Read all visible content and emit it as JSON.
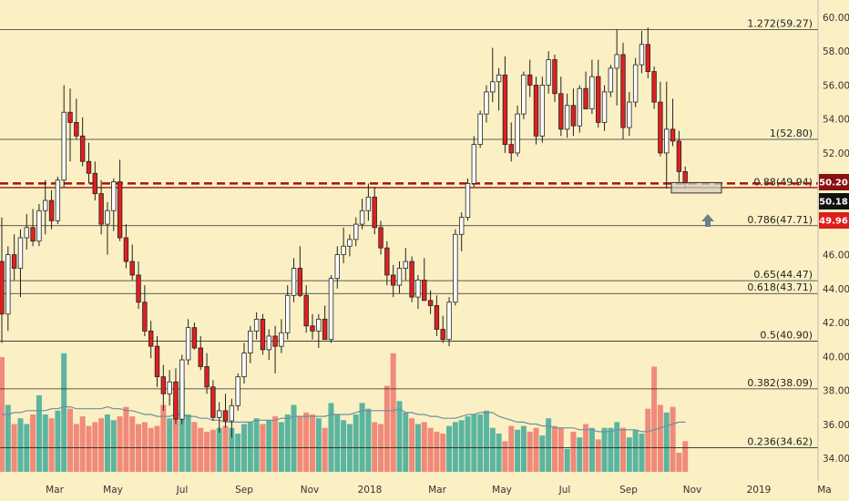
{
  "chart_data": {
    "type": "candlestick",
    "price_axis": {
      "ticks": [
        34,
        36,
        38,
        40,
        42,
        44,
        46,
        48,
        50,
        52,
        54,
        56,
        58,
        60
      ],
      "tick_labels": [
        "34.00",
        "36.00",
        "38.00",
        "40.00",
        "42.00",
        "44.00",
        "46.00",
        "48.00",
        "50.00",
        "52.00",
        "54.00",
        "56.00",
        "58.00",
        "60.00"
      ],
      "range": [
        33,
        61
      ]
    },
    "time_axis": {
      "labels": [
        "Mar",
        "May",
        "Jul",
        "Sep",
        "Nov",
        "2018",
        "Mar",
        "May",
        "Jul",
        "Sep",
        "Nov",
        "2019",
        "Ma"
      ]
    },
    "fib_levels": [
      {
        "label": "1.272(59.27)",
        "price": 59.27
      },
      {
        "label": "1(52.80)",
        "price": 52.8
      },
      {
        "label": "0.88(49.94)",
        "price": 49.94
      },
      {
        "label": "0.786(47.71)",
        "price": 47.71
      },
      {
        "label": "0.65(44.47)",
        "price": 44.47
      },
      {
        "label": "0.618(43.71)",
        "price": 43.71
      },
      {
        "label": "0.5(40.90)",
        "price": 40.9
      },
      {
        "label": "0.382(38.09)",
        "price": 38.09
      },
      {
        "label": "0.236(34.62)",
        "price": 34.62
      }
    ],
    "price_badges": [
      {
        "label": "50.20",
        "price": 50.2,
        "color": "#8b1010"
      },
      {
        "label": "50.18",
        "price": 50.18,
        "color": "#111111"
      },
      {
        "label": "49.96",
        "price": 49.96,
        "color": "#e01b1b"
      }
    ],
    "support_line": {
      "price": 50.2,
      "style": "dashed",
      "color": "#a01515"
    },
    "solid_line": {
      "price": 49.96,
      "color": "#a01515"
    },
    "candles": [
      [
        45.6,
        48.2,
        40.8,
        42.5
      ],
      [
        42.5,
        46.5,
        41.5,
        46.0
      ],
      [
        46.0,
        47.2,
        44.5,
        45.2
      ],
      [
        45.2,
        47.5,
        43.5,
        47.0
      ],
      [
        47.0,
        48.4,
        46.3,
        47.6
      ],
      [
        47.6,
        48.7,
        46.5,
        46.8
      ],
      [
        46.8,
        49.0,
        46.5,
        48.6
      ],
      [
        48.6,
        50.4,
        47.2,
        49.2
      ],
      [
        49.2,
        49.8,
        47.5,
        48.0
      ],
      [
        48.0,
        50.6,
        47.8,
        50.4
      ],
      [
        50.4,
        56.0,
        50.0,
        54.4
      ],
      [
        54.4,
        55.8,
        51.5,
        53.8
      ],
      [
        53.8,
        55.2,
        52.8,
        53.0
      ],
      [
        53.0,
        54.1,
        51.2,
        51.5
      ],
      [
        51.5,
        52.6,
        50.2,
        50.8
      ],
      [
        50.8,
        51.5,
        49.2,
        49.6
      ],
      [
        49.6,
        50.4,
        47.2,
        47.8
      ],
      [
        47.8,
        49.1,
        46.0,
        48.6
      ],
      [
        48.6,
        50.5,
        47.4,
        50.3
      ],
      [
        50.3,
        51.6,
        46.8,
        47.0
      ],
      [
        47.0,
        47.8,
        45.2,
        45.6
      ],
      [
        45.6,
        46.6,
        44.5,
        44.8
      ],
      [
        44.8,
        45.6,
        42.8,
        43.2
      ],
      [
        43.2,
        44.2,
        41.2,
        41.5
      ],
      [
        41.5,
        42.1,
        39.9,
        40.6
      ],
      [
        40.6,
        41.2,
        38.2,
        38.8
      ],
      [
        38.8,
        39.5,
        36.8,
        37.8
      ],
      [
        37.8,
        39.2,
        37.1,
        38.5
      ],
      [
        38.5,
        39.3,
        36.0,
        36.3
      ],
      [
        36.3,
        40.1,
        36.0,
        39.8
      ],
      [
        39.8,
        42.2,
        39.5,
        41.7
      ],
      [
        41.7,
        42.0,
        40.4,
        40.5
      ],
      [
        40.5,
        41.2,
        39.2,
        39.4
      ],
      [
        39.4,
        40.2,
        37.8,
        38.2
      ],
      [
        38.2,
        38.6,
        36.2,
        36.4
      ],
      [
        36.4,
        37.3,
        35.5,
        36.8
      ],
      [
        36.8,
        37.8,
        35.8,
        36.2
      ],
      [
        36.2,
        37.5,
        35.2,
        37.1
      ],
      [
        37.1,
        39.0,
        36.8,
        38.8
      ],
      [
        38.8,
        40.8,
        38.4,
        40.2
      ],
      [
        40.2,
        41.8,
        39.6,
        41.5
      ],
      [
        41.5,
        42.6,
        41.0,
        42.2
      ],
      [
        42.2,
        42.5,
        40.1,
        40.4
      ],
      [
        40.4,
        41.6,
        39.8,
        41.2
      ],
      [
        41.2,
        41.8,
        39.0,
        40.6
      ],
      [
        40.6,
        42.2,
        40.2,
        41.4
      ],
      [
        41.4,
        44.2,
        41.0,
        43.6
      ],
      [
        43.6,
        45.8,
        43.2,
        45.2
      ],
      [
        45.2,
        46.5,
        43.5,
        43.6
      ],
      [
        43.6,
        44.2,
        41.4,
        41.8
      ],
      [
        41.8,
        42.5,
        41.0,
        41.5
      ],
      [
        41.5,
        42.5,
        40.5,
        42.2
      ],
      [
        42.2,
        43.0,
        41.2,
        41.0
      ],
      [
        41.0,
        44.8,
        40.8,
        44.6
      ],
      [
        44.6,
        46.5,
        44.0,
        46.0
      ],
      [
        46.0,
        47.6,
        45.5,
        46.5
      ],
      [
        46.5,
        47.2,
        45.9,
        46.9
      ],
      [
        46.9,
        48.2,
        46.5,
        47.8
      ],
      [
        47.8,
        49.3,
        47.5,
        48.6
      ],
      [
        48.6,
        50.2,
        48.0,
        49.4
      ],
      [
        49.4,
        50.0,
        47.2,
        47.6
      ],
      [
        47.6,
        48.0,
        46.0,
        46.4
      ],
      [
        46.4,
        46.8,
        44.2,
        44.8
      ],
      [
        44.8,
        45.4,
        43.5,
        44.2
      ],
      [
        44.2,
        45.6,
        43.7,
        45.2
      ],
      [
        45.2,
        46.4,
        44.5,
        45.6
      ],
      [
        45.6,
        45.9,
        43.2,
        43.5
      ],
      [
        43.5,
        44.8,
        42.8,
        44.5
      ],
      [
        44.5,
        45.8,
        43.5,
        43.3
      ],
      [
        43.3,
        43.9,
        42.5,
        43.0
      ],
      [
        43.0,
        43.6,
        41.2,
        41.6
      ],
      [
        41.6,
        42.4,
        40.8,
        41.0
      ],
      [
        41.0,
        43.5,
        40.6,
        43.2
      ],
      [
        43.2,
        47.5,
        43.0,
        47.2
      ],
      [
        47.2,
        48.5,
        46.2,
        48.2
      ],
      [
        48.2,
        50.5,
        48.0,
        50.2
      ],
      [
        50.2,
        53.0,
        50.0,
        52.5
      ],
      [
        52.5,
        54.5,
        52.3,
        54.3
      ],
      [
        54.3,
        56.0,
        53.8,
        55.6
      ],
      [
        55.6,
        58.2,
        55.0,
        56.2
      ],
      [
        56.2,
        57.0,
        54.5,
        56.6
      ],
      [
        56.6,
        57.7,
        52.0,
        52.5
      ],
      [
        52.5,
        53.8,
        51.5,
        52.0
      ],
      [
        52.0,
        54.8,
        51.8,
        54.3
      ],
      [
        54.3,
        56.8,
        54.0,
        56.6
      ],
      [
        56.6,
        57.5,
        55.3,
        56.0
      ],
      [
        56.0,
        56.5,
        52.5,
        53.0
      ],
      [
        53.0,
        56.5,
        52.6,
        56.0
      ],
      [
        56.0,
        58.0,
        55.5,
        57.5
      ],
      [
        57.5,
        57.8,
        55.0,
        55.5
      ],
      [
        55.5,
        56.5,
        53.0,
        53.4
      ],
      [
        53.4,
        55.5,
        52.9,
        54.8
      ],
      [
        54.8,
        55.8,
        53.0,
        53.6
      ],
      [
        53.6,
        56.0,
        53.2,
        55.8
      ],
      [
        55.8,
        56.8,
        54.6,
        54.6
      ],
      [
        54.6,
        57.5,
        54.3,
        56.5
      ],
      [
        56.5,
        57.5,
        53.5,
        53.8
      ],
      [
        53.8,
        56.0,
        53.3,
        55.6
      ],
      [
        55.6,
        57.2,
        55.3,
        57.0
      ],
      [
        57.0,
        59.3,
        54.8,
        57.8
      ],
      [
        57.8,
        58.5,
        52.8,
        53.5
      ],
      [
        53.5,
        55.6,
        53.0,
        55.0
      ],
      [
        55.0,
        57.6,
        54.7,
        57.2
      ],
      [
        57.2,
        59.2,
        56.7,
        58.4
      ],
      [
        58.4,
        59.4,
        56.4,
        56.8
      ],
      [
        56.8,
        57.1,
        54.6,
        55.0
      ],
      [
        55.0,
        56.2,
        51.8,
        52.0
      ],
      [
        52.0,
        56.2,
        49.9,
        53.4
      ],
      [
        53.4,
        55.2,
        52.4,
        52.7
      ],
      [
        52.7,
        53.3,
        50.3,
        50.9
      ],
      [
        50.9,
        51.2,
        49.9,
        50.2
      ]
    ],
    "volume": [
      6.0,
      3.5,
      2.5,
      2.8,
      2.5,
      3.0,
      4.0,
      3.0,
      2.8,
      3.2,
      6.2,
      3.3,
      2.5,
      2.9,
      2.4,
      2.6,
      2.8,
      3.0,
      2.7,
      2.9,
      3.4,
      2.9,
      2.5,
      2.6,
      2.3,
      2.4,
      3.5,
      2.8,
      3.8,
      4.8,
      3.0,
      2.6,
      2.3,
      2.1,
      2.2,
      2.3,
      2.4,
      2.3,
      2.0,
      2.5,
      2.6,
      2.8,
      2.5,
      2.7,
      2.9,
      2.6,
      3.0,
      3.5,
      2.9,
      3.1,
      3.0,
      2.8,
      2.3,
      3.6,
      3.0,
      2.7,
      2.5,
      3.0,
      3.6,
      3.3,
      2.6,
      2.5,
      4.5,
      6.2,
      3.7,
      3.1,
      2.8,
      2.5,
      2.6,
      2.3,
      2.1,
      2.0,
      2.4,
      2.6,
      2.7,
      2.9,
      3.0,
      3.0,
      3.2,
      2.3,
      2.0,
      1.6,
      2.4,
      2.2,
      2.4,
      2.1,
      2.3,
      1.9,
      2.8,
      2.4,
      2.3,
      1.2,
      2.1,
      1.8,
      2.5,
      2.3,
      1.7,
      2.3,
      2.3,
      2.6,
      2.3,
      1.8,
      2.2,
      2.0,
      3.3,
      5.5,
      3.5,
      3.1,
      3.4,
      1.0,
      1.6
    ],
    "volume_ma": [
      3.0,
      3.0,
      3.1,
      3.1,
      3.2,
      3.2,
      3.2,
      3.2,
      3.3,
      3.3,
      3.4,
      3.4,
      3.3,
      3.3,
      3.3,
      3.3,
      3.3,
      3.4,
      3.3,
      3.3,
      3.2,
      3.2,
      3.1,
      3.0,
      3.0,
      2.9,
      2.9,
      2.9,
      3.0,
      3.0,
      2.9,
      2.9,
      2.8,
      2.8,
      2.7,
      2.7,
      2.6,
      2.6,
      2.6,
      2.6,
      2.6,
      2.7,
      2.7,
      2.7,
      2.7,
      2.8,
      2.8,
      2.9,
      2.9,
      2.9,
      2.9,
      2.9,
      2.9,
      3.0,
      3.0,
      3.0,
      3.0,
      3.1,
      3.2,
      3.2,
      3.2,
      3.2,
      3.2,
      3.2,
      3.3,
      3.1,
      3.1,
      3.0,
      3.0,
      2.9,
      2.9,
      2.8,
      2.8,
      2.8,
      2.9,
      3.0,
      3.0,
      3.1,
      3.1,
      3.1,
      2.9,
      2.8,
      2.7,
      2.6,
      2.6,
      2.5,
      2.5,
      2.4,
      2.4,
      2.3,
      2.3,
      2.3,
      2.3,
      2.2,
      2.2,
      2.2,
      2.1,
      2.1,
      2.1,
      2.2,
      2.2,
      2.2,
      2.2,
      2.1,
      2.1,
      2.2,
      2.3,
      2.4,
      2.5,
      2.6,
      2.6
    ],
    "colors": {
      "background": "#fbf0c4",
      "up_fill": "#ffffff",
      "down_fill": "#e02020",
      "wick": "#222222",
      "vol_up": "#5bb5a0",
      "vol_down": "#f08a7a",
      "vol_ma": "#6c8fa0",
      "grid": "#2a2a2a",
      "marker": "#6a7f8a"
    }
  }
}
